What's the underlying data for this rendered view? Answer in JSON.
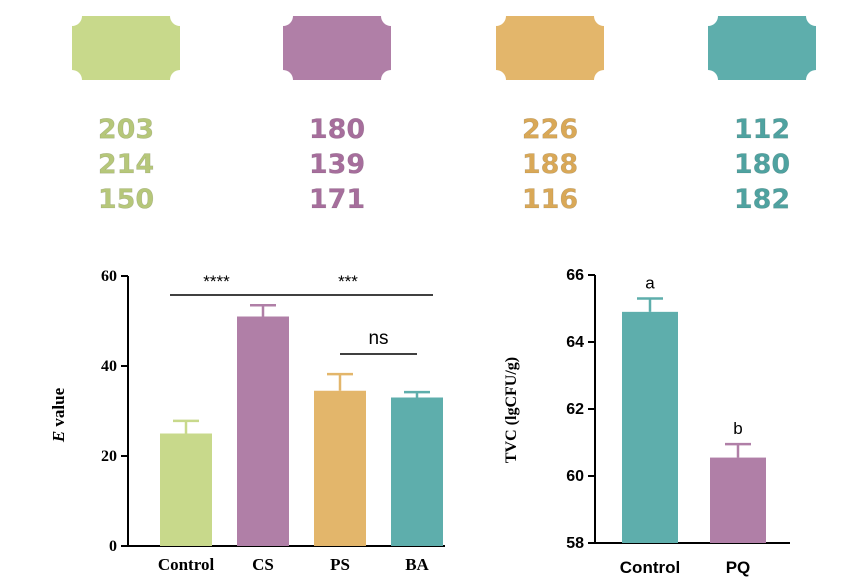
{
  "colors": {
    "control": "#c8d98b",
    "cs": "#b07fa7",
    "ps": "#e3b66b",
    "ba": "#5eaeac",
    "pq": "#b07fa7"
  },
  "groups": [
    {
      "color": "#c8d98b",
      "text_color": "#b6c77a",
      "values": [
        "203",
        "214",
        "150"
      ]
    },
    {
      "color": "#b07fa7",
      "text_color": "#a66e9c",
      "values": [
        "180",
        "139",
        "171"
      ]
    },
    {
      "color": "#e3b66b",
      "text_color": "#d9a857",
      "values": [
        "226",
        "188",
        "116"
      ]
    },
    {
      "color": "#5eaeac",
      "text_color": "#4fa2a0",
      "values": [
        "112",
        "180",
        "182"
      ]
    }
  ],
  "chart_data": [
    {
      "type": "bar",
      "categories": [
        "Control",
        "CS",
        "PS",
        "BA"
      ],
      "values": [
        25,
        51,
        34.5,
        33
      ],
      "errors": [
        2.8,
        2.5,
        3.7,
        1.2
      ],
      "colors": [
        "#c8d98b",
        "#b07fa7",
        "#e3b66b",
        "#5eaeac"
      ],
      "ylabel_italic": "E",
      "ylabel_rest": " value",
      "ylim": [
        0,
        60
      ],
      "yticks": [
        "0",
        "20",
        "40",
        "60"
      ],
      "significance": [
        {
          "label": "****",
          "from": 0,
          "to": 1
        },
        {
          "label": "***",
          "from": 1,
          "to": 3
        },
        {
          "label": "ns",
          "from": 2,
          "to": 3
        }
      ]
    },
    {
      "type": "bar",
      "categories": [
        "Control",
        "PQ"
      ],
      "values": [
        64.9,
        60.55
      ],
      "errors": [
        0.4,
        0.4
      ],
      "colors": [
        "#5eaeac",
        "#b07fa7"
      ],
      "letters": [
        "a",
        "b"
      ],
      "ylabel": "TVC (lgCFU/g)",
      "ylim": [
        58,
        66
      ],
      "yticks": [
        "58",
        "60",
        "62",
        "64",
        "66"
      ]
    }
  ]
}
